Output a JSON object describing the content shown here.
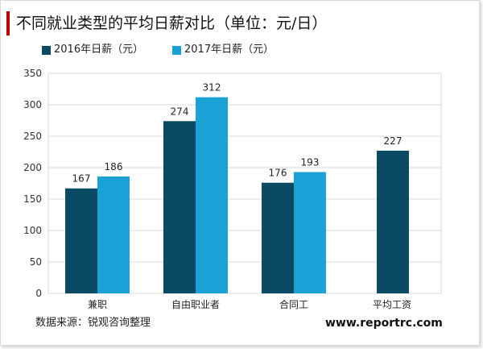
{
  "title": "不同就业类型的平均日薪对比（单位：元/日）",
  "colors": {
    "series_2016": "#0b4a63",
    "series_2017": "#1aa2d6",
    "title_accent": "#c00000",
    "gridline": "#d9d9d9"
  },
  "legend": [
    {
      "label": "2016年日薪（元）",
      "color": "#0b4a63"
    },
    {
      "label": "2017年日薪（元）",
      "color": "#1aa2d6"
    }
  ],
  "chart_data": {
    "type": "bar",
    "title": "不同就业类型的平均日薪对比（单位：元/日）",
    "categories": [
      "兼职",
      "自由职业者",
      "合同工",
      "平均工资"
    ],
    "series": [
      {
        "name": "2016年日薪（元）",
        "values": [
          167,
          274,
          176,
          227
        ]
      },
      {
        "name": "2017年日薪（元）",
        "values": [
          186,
          312,
          193,
          null
        ]
      }
    ],
    "ylim": [
      0,
      350
    ],
    "yticks": [
      0,
      50,
      100,
      150,
      200,
      250,
      300,
      350
    ],
    "grid": true,
    "legend_position": "top-left"
  },
  "source": "数据来源：锐观咨询整理",
  "website": "www.reportrc.com"
}
